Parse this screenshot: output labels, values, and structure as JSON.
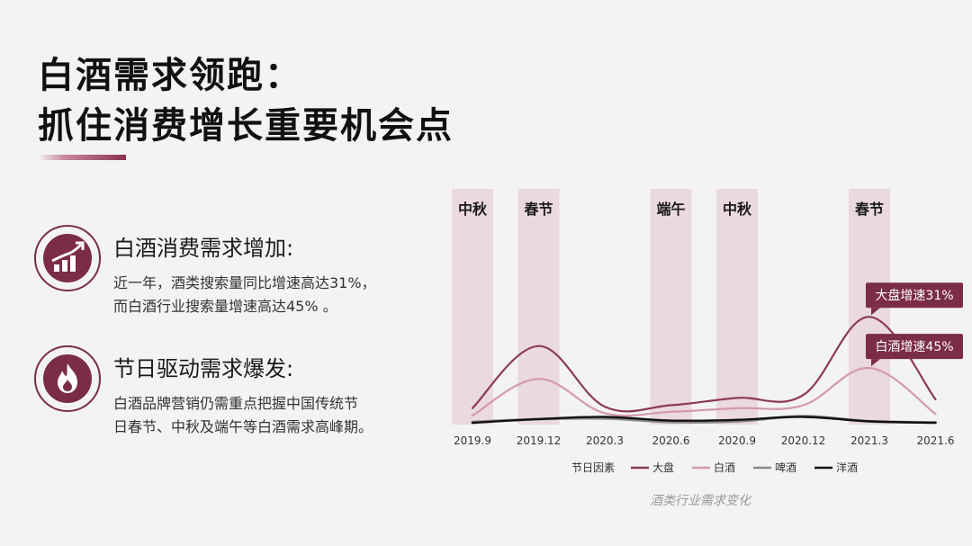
{
  "title": {
    "line1": "白酒需求领跑：",
    "line2": "抓住消费增长重要机会点"
  },
  "features": [
    {
      "icon": "growth-chart-icon",
      "title": "白酒消费需求增加:",
      "desc_line1": "近一年，酒类搜索量同比增速高达31%，",
      "desc_line2": "而白酒行业搜索量增速高达45% 。"
    },
    {
      "icon": "flame-icon",
      "title": "节日驱动需求爆发:",
      "desc_line1": "白酒品牌营销仍需重点把握中国传统节",
      "desc_line2": "日春节、中秋及端午等白酒需求高峰期。"
    }
  ],
  "colors": {
    "accent": "#7b2d46",
    "festival_band": "#ead9de",
    "dapan": "#8c3a55",
    "baijiu": "#d39aab",
    "pijiu": "#8a8a8a",
    "yangjiu": "#111111"
  },
  "chart_data": {
    "type": "line",
    "x": [
      "2019.9",
      "2019.12",
      "2020.3",
      "2020.6",
      "2020.9",
      "2020.12",
      "2021.3",
      "2021.6"
    ],
    "festivals": [
      {
        "label": "中秋",
        "x": 0
      },
      {
        "label": "春节",
        "x": 1
      },
      {
        "label": "端午",
        "x": 3
      },
      {
        "label": "中秋",
        "x": 4
      },
      {
        "label": "春节",
        "x": 6
      }
    ],
    "series": [
      {
        "name": "大盘",
        "values": [
          2.0,
          10.5,
          2.2,
          2.4,
          3.4,
          3.8,
          14.5,
          3.2
        ],
        "color": "#8c3a55",
        "width": 2.2
      },
      {
        "name": "白酒",
        "values": [
          1.0,
          6.0,
          1.3,
          1.5,
          2.0,
          2.4,
          7.5,
          1.2
        ],
        "color": "#d39aab",
        "width": 2.2
      },
      {
        "name": "啤酒",
        "values": [
          0.1,
          0.5,
          0.6,
          0.1,
          0.2,
          0.9,
          0.2,
          0.05
        ],
        "color": "#8a8a8a",
        "width": 3
      },
      {
        "name": "洋酒",
        "values": [
          0.0,
          0.5,
          0.8,
          0.3,
          0.4,
          0.8,
          0.2,
          0.0
        ],
        "color": "#111111",
        "width": 2.4
      }
    ],
    "ylim": [
      0,
      16
    ],
    "callouts": [
      {
        "text": "大盘增速31%",
        "series": "大盘",
        "x": 6
      },
      {
        "text": "白酒增速45%",
        "series": "白酒",
        "x": 6
      }
    ],
    "legend_prefix": "节日因素",
    "legend_position": "bottom",
    "caption": "酒类行业需求变化"
  }
}
